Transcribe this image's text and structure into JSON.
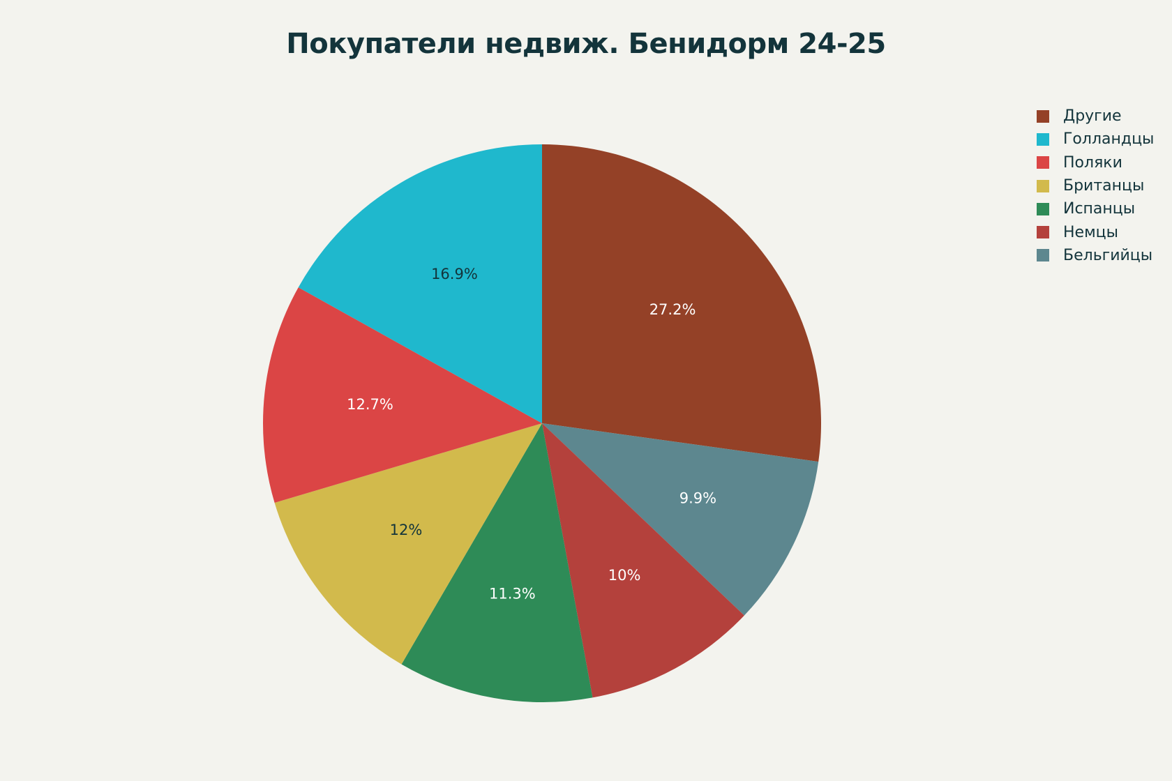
{
  "chart_data": {
    "type": "pie",
    "title": "Покупатели недвиж. Бенидорм 24-25",
    "start_angle_deg": 90,
    "direction": "clockwise",
    "legend_position": "top-right",
    "slices": [
      {
        "label": "Другие",
        "value": 27.2,
        "display": "27.2%",
        "color": "#944127",
        "label_color": "#ffffff"
      },
      {
        "label": "Бельгийцы",
        "value": 9.9,
        "display": "9.9%",
        "color": "#5d878f",
        "label_color": "#ffffff"
      },
      {
        "label": "Немцы",
        "value": 10,
        "display": "10%",
        "color": "#b4413c",
        "label_color": "#ffffff"
      },
      {
        "label": "Испанцы",
        "value": 11.3,
        "display": "11.3%",
        "color": "#2e8b57",
        "label_color": "#ffffff"
      },
      {
        "label": "Британцы",
        "value": 12,
        "display": "12%",
        "color": "#d2ba4c",
        "label_color": "#13343b"
      },
      {
        "label": "Поляки",
        "value": 12.7,
        "display": "12.7%",
        "color": "#db4545",
        "label_color": "#ffffff"
      },
      {
        "label": "Голландцы",
        "value": 16.9,
        "display": "16.9%",
        "color": "#1fb8cd",
        "label_color": "#13343b"
      }
    ],
    "legend_order": [
      "Другие",
      "Голландцы",
      "Поляки",
      "Британцы",
      "Испанцы",
      "Немцы",
      "Бельгийцы"
    ]
  }
}
